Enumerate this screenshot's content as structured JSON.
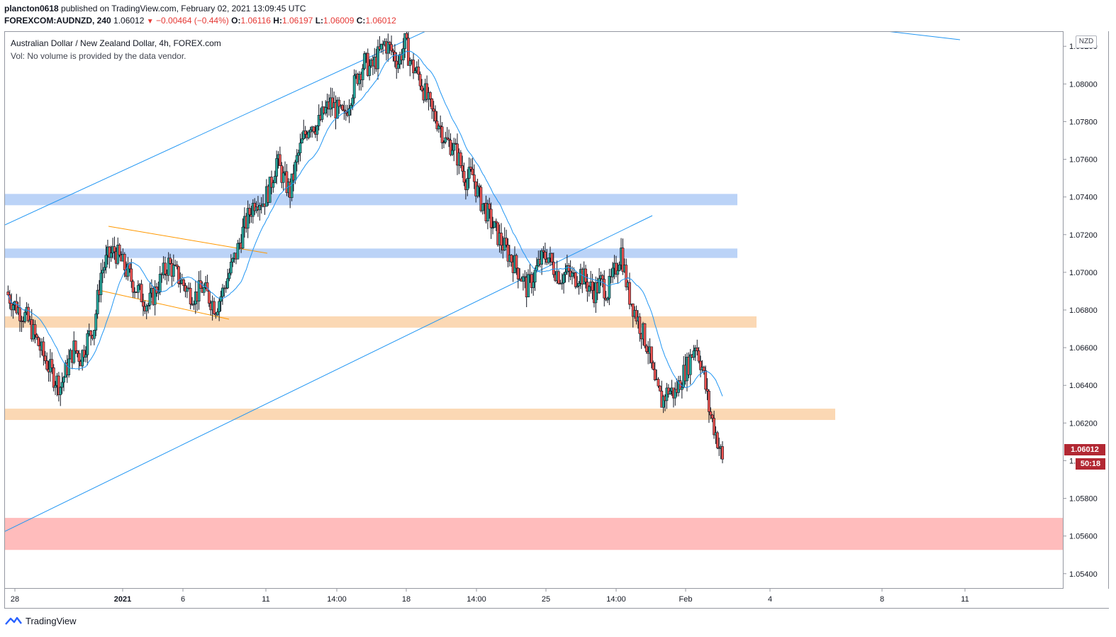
{
  "header": {
    "publisher": "plancton0618",
    "published_text": " published on TradingView.com, February 02, 2021 13:09:45 UTC",
    "symbol": "FOREXCOM:AUDNZD, 240",
    "last": "1.06012",
    "change": "−0.00464 (−0.44%)",
    "o_label": "O:",
    "o_val": "1.06116",
    "h_label": "H:",
    "h_val": "1.06197",
    "l_label": "L:",
    "l_val": "1.06009",
    "c_label": "C:",
    "c_val": "1.06012"
  },
  "legend": {
    "title": "Australian Dollar / New Zealand Dollar, 4h, FOREX.com",
    "vol": "Vol: No volume is provided by the data vendor."
  },
  "axis": {
    "currency": "NZD",
    "price_tag": "1.06012",
    "countdown": "50:18"
  },
  "footer": {
    "brand": "TradingView"
  },
  "colors": {
    "up": "#26a69a",
    "down": "#ef5350",
    "candle_border": "#131722",
    "ma": "#2196f3",
    "trend": "#2196f3",
    "wedge": "#ff9800",
    "zone_blue": "#bbd3f7",
    "zone_orange": "#fbd8b4",
    "zone_red": "#ffbcbc"
  },
  "chart_data": {
    "type": "candlestick",
    "title": "Australian Dollar / New Zealand Dollar, 4h, FOREX.com",
    "ylim": [
      1.0532,
      1.0828
    ],
    "y_ticks": [
      "1.05400",
      "1.05600",
      "1.05800",
      "1.06000",
      "1.06200",
      "1.06400",
      "1.06600",
      "1.06800",
      "1.07000",
      "1.07200",
      "1.07400",
      "1.07600",
      "1.07800",
      "1.08000",
      "1.08200"
    ],
    "x_ticks": [
      "28",
      "2021",
      "6",
      "11",
      "14:00",
      "18",
      "14:00",
      "25",
      "14:00",
      "Feb",
      "4",
      "8",
      "11"
    ],
    "zones": [
      {
        "kind": "support-resistance",
        "color": "blue",
        "low": 1.0736,
        "high": 1.0742
      },
      {
        "kind": "support-resistance",
        "color": "blue",
        "low": 1.0708,
        "high": 1.0713
      },
      {
        "kind": "support-resistance",
        "color": "orange",
        "low": 1.0671,
        "high": 1.0677
      },
      {
        "kind": "support-resistance",
        "color": "orange",
        "low": 1.0622,
        "high": 1.0628
      },
      {
        "kind": "target",
        "color": "red",
        "low": 1.0553,
        "high": 1.057
      }
    ],
    "price_path": [
      1.069,
      1.0684,
      1.068,
      1.0676,
      1.0668,
      1.066,
      1.0652,
      1.0645,
      1.064,
      1.065,
      1.066,
      1.0655,
      1.0665,
      1.0672,
      1.07,
      1.0708,
      1.0712,
      1.0706,
      1.07,
      1.0693,
      1.0688,
      1.0683,
      1.069,
      1.0698,
      1.0705,
      1.07,
      1.0695,
      1.069,
      1.0688,
      1.0692,
      1.0687,
      1.0682,
      1.069,
      1.07,
      1.071,
      1.0722,
      1.0732,
      1.074,
      1.0738,
      1.0745,
      1.076,
      1.075,
      1.0743,
      1.076,
      1.0772,
      1.078,
      1.0778,
      1.0785,
      1.079,
      1.0786,
      1.0782,
      1.0795,
      1.0805,
      1.0812,
      1.0808,
      1.0815,
      1.0822,
      1.0818,
      1.0812,
      1.0822,
      1.081,
      1.0805,
      1.0795,
      1.0785,
      1.078,
      1.077,
      1.0768,
      1.076,
      1.075,
      1.0752,
      1.074,
      1.0733,
      1.0725,
      1.0718,
      1.0712,
      1.0706,
      1.07,
      1.0692,
      1.0698,
      1.0706,
      1.071,
      1.0703,
      1.0698,
      1.07,
      1.0697,
      1.07,
      1.0694,
      1.069,
      1.0695,
      1.069,
      1.07,
      1.0712,
      1.069,
      1.068,
      1.067,
      1.066,
      1.064,
      1.0632,
      1.0638,
      1.0636,
      1.0645,
      1.0652,
      1.0663,
      1.065,
      1.0628,
      1.0615,
      1.0601
    ],
    "moving_average": "20-period",
    "last_price": 1.06012
  }
}
